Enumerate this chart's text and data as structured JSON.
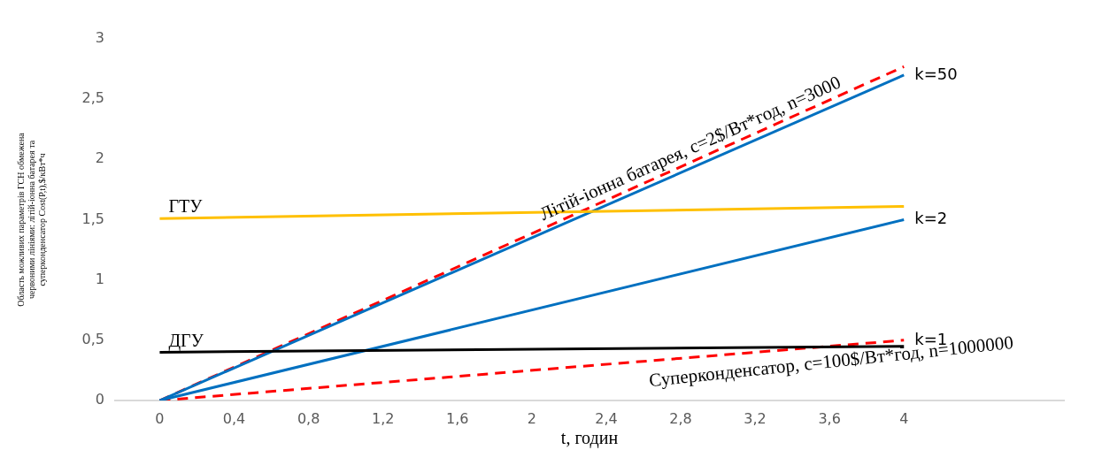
{
  "chart_data": {
    "type": "line",
    "xlabel": "t, годин",
    "ylabel": "Область можливих параметрів ГСН обмежена червоними лініями: літій-іонна батарея та суперконденсатор Cost(P,t),$/кВт*ч",
    "x": [
      0,
      4
    ],
    "xlim": [
      -0.24,
      4.86
    ],
    "xticks": [
      0,
      {
        "value": 0.4,
        "label": "0,4"
      },
      {
        "value": 0.8,
        "label": "0,8"
      },
      {
        "value": 1.2,
        "label": "1,2"
      },
      {
        "value": 1.6,
        "label": "1,6"
      },
      2,
      {
        "value": 2.4,
        "label": "2,4"
      },
      {
        "value": 2.8,
        "label": "2,8"
      },
      {
        "value": 3.2,
        "label": "3,2"
      },
      {
        "value": 3.6,
        "label": "3,6"
      },
      4
    ],
    "ylim": [
      0,
      3
    ],
    "yticks": [
      0,
      {
        "value": 0.5,
        "label": "0,5"
      },
      1,
      {
        "value": 1.5,
        "label": "1,5"
      },
      2,
      {
        "value": 2.5,
        "label": "2,5"
      },
      3
    ],
    "grid": false,
    "legend": false,
    "marker": "none",
    "series": [
      {
        "name": "ГТУ",
        "color": "#ffc000",
        "values": [
          1.51,
          1.61
        ]
      },
      {
        "name": "ДГУ",
        "color": "#000000",
        "values": [
          0.4,
          0.45
        ]
      },
      {
        "name": "k=50",
        "color": "#0070c0",
        "values": [
          0,
          2.7
        ]
      },
      {
        "name": "k=2",
        "color": "#0070c0",
        "values": [
          0,
          1.5
        ]
      },
      {
        "name": "Літій-іонна батарея, c=2$/Вт*год, n=3000",
        "color": "#ff0000",
        "line_style": "dashed",
        "values": [
          0,
          2.77
        ]
      },
      {
        "name": "Суперконденсатор, c=100$/Вт*год, n=1000000",
        "color": "#ff0000",
        "line_style": "dashed",
        "values": [
          0,
          0.5
        ]
      }
    ],
    "annotations": [
      {
        "text": "k=1",
        "x": 4,
        "y": 0.5
      }
    ]
  }
}
